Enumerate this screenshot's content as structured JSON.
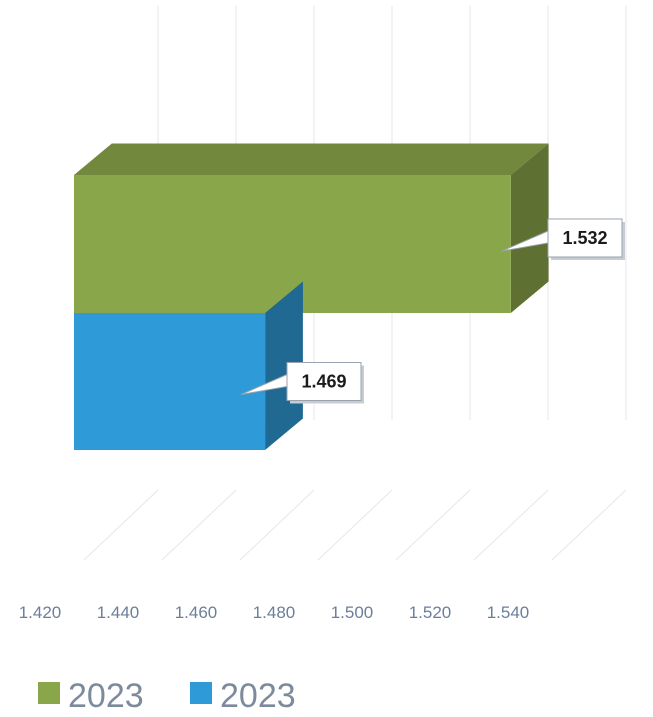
{
  "chart_data": {
    "type": "bar",
    "orientation": "horizontal",
    "style": "3d",
    "series": [
      {
        "name": "2023",
        "value": 1.532,
        "value_label": "1.532",
        "color": "#8aa64a"
      },
      {
        "name": "2023",
        "value": 1.469,
        "value_label": "1.469",
        "color": "#2e9ad8"
      }
    ],
    "xlim": [
      1.42,
      1.54
    ],
    "ticks": [
      1.42,
      1.44,
      1.46,
      1.48,
      1.5,
      1.52,
      1.54
    ],
    "tick_labels": [
      "1.420",
      "1.440",
      "1.460",
      "1.480",
      "1.500",
      "1.520",
      "1.540"
    ],
    "title": "",
    "xlabel": "",
    "ylabel": "",
    "grid": true,
    "legend_position": "bottom-left"
  }
}
